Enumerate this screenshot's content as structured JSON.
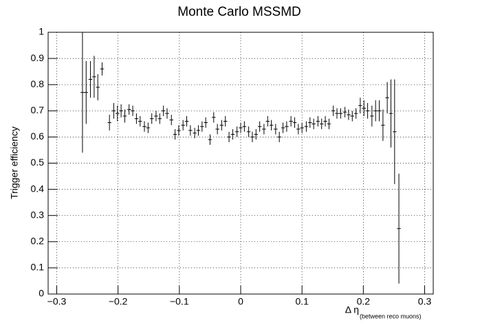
{
  "chart_data": {
    "type": "scatter",
    "title": "Monte Carlo MSSMD",
    "ylabel": "Trigger efficiency",
    "xlabel": "Δ η",
    "xlabel_sub": "(between reco muons)",
    "x": [
      -0.258,
      -0.252,
      -0.245,
      -0.239,
      -0.233,
      -0.226,
      -0.214,
      -0.207,
      -0.201,
      -0.195,
      -0.189,
      -0.182,
      -0.176,
      -0.17,
      -0.164,
      -0.157,
      -0.151,
      -0.145,
      -0.138,
      -0.132,
      -0.126,
      -0.12,
      -0.113,
      -0.107,
      -0.101,
      -0.094,
      -0.088,
      -0.082,
      -0.075,
      -0.069,
      -0.063,
      -0.057,
      -0.05,
      -0.044,
      -0.038,
      -0.031,
      -0.025,
      -0.019,
      -0.013,
      -0.006,
      0,
      0.006,
      0.013,
      0.019,
      0.025,
      0.031,
      0.038,
      0.044,
      0.05,
      0.057,
      0.063,
      0.069,
      0.075,
      0.082,
      0.088,
      0.094,
      0.1,
      0.107,
      0.113,
      0.119,
      0.126,
      0.132,
      0.138,
      0.144,
      0.151,
      0.157,
      0.163,
      0.17,
      0.176,
      0.182,
      0.188,
      0.195,
      0.201,
      0.207,
      0.214,
      0.22,
      0.226,
      0.232,
      0.239,
      0.245,
      0.251,
      0.258
    ],
    "xerr": 0.0031,
    "color": "#000000",
    "values": [
      0.77,
      0.77,
      0.82,
      0.83,
      0.79,
      0.86,
      0.655,
      0.7,
      0.69,
      0.7,
      0.68,
      0.705,
      0.7,
      0.67,
      0.66,
      0.64,
      0.635,
      0.67,
      0.68,
      0.67,
      0.7,
      0.69,
      0.665,
      0.61,
      0.625,
      0.645,
      0.66,
      0.625,
      0.615,
      0.625,
      0.64,
      0.655,
      0.59,
      0.675,
      0.63,
      0.645,
      0.66,
      0.6,
      0.61,
      0.62,
      0.635,
      0.64,
      0.62,
      0.6,
      0.61,
      0.64,
      0.63,
      0.66,
      0.645,
      0.63,
      0.6,
      0.635,
      0.64,
      0.66,
      0.655,
      0.63,
      0.635,
      0.64,
      0.655,
      0.65,
      0.66,
      0.65,
      0.66,
      0.65,
      0.7,
      0.69,
      0.69,
      0.695,
      0.685,
      0.68,
      0.69,
      0.72,
      0.71,
      0.7,
      0.68,
      0.7,
      0.7,
      0.645,
      0.75,
      0.69,
      0.62,
      0.25
    ],
    "errors": [
      0.23,
      0.12,
      0.07,
      0.08,
      0.05,
      0.025,
      0.03,
      0.03,
      0.03,
      0.025,
      0.025,
      0.02,
      0.02,
      0.02,
      0.02,
      0.02,
      0.02,
      0.02,
      0.02,
      0.02,
      0.02,
      0.02,
      0.02,
      0.02,
      0.02,
      0.02,
      0.02,
      0.02,
      0.02,
      0.02,
      0.02,
      0.02,
      0.02,
      0.02,
      0.02,
      0.02,
      0.02,
      0.02,
      0.02,
      0.02,
      0.02,
      0.02,
      0.02,
      0.02,
      0.02,
      0.02,
      0.02,
      0.02,
      0.02,
      0.02,
      0.02,
      0.02,
      0.02,
      0.02,
      0.02,
      0.02,
      0.02,
      0.02,
      0.02,
      0.02,
      0.02,
      0.02,
      0.02,
      0.02,
      0.02,
      0.02,
      0.02,
      0.02,
      0.02,
      0.02,
      0.02,
      0.03,
      0.03,
      0.03,
      0.04,
      0.04,
      0.04,
      0.06,
      0.06,
      0.13,
      0.2,
      0.21
    ],
    "xlim": [
      -0.314,
      0.314
    ],
    "ylim": [
      0,
      1
    ],
    "xticks": [
      {
        "value": -0.3,
        "label": "−0.3"
      },
      {
        "value": -0.2,
        "label": "−0.2"
      },
      {
        "value": -0.1,
        "label": "−0.1"
      },
      0,
      0.1,
      0.2,
      0.3
    ],
    "yticks": [
      0,
      0.1,
      0.2,
      0.3,
      0.4,
      0.5,
      0.6,
      0.7,
      0.8,
      0.9,
      1
    ],
    "grid": true
  }
}
